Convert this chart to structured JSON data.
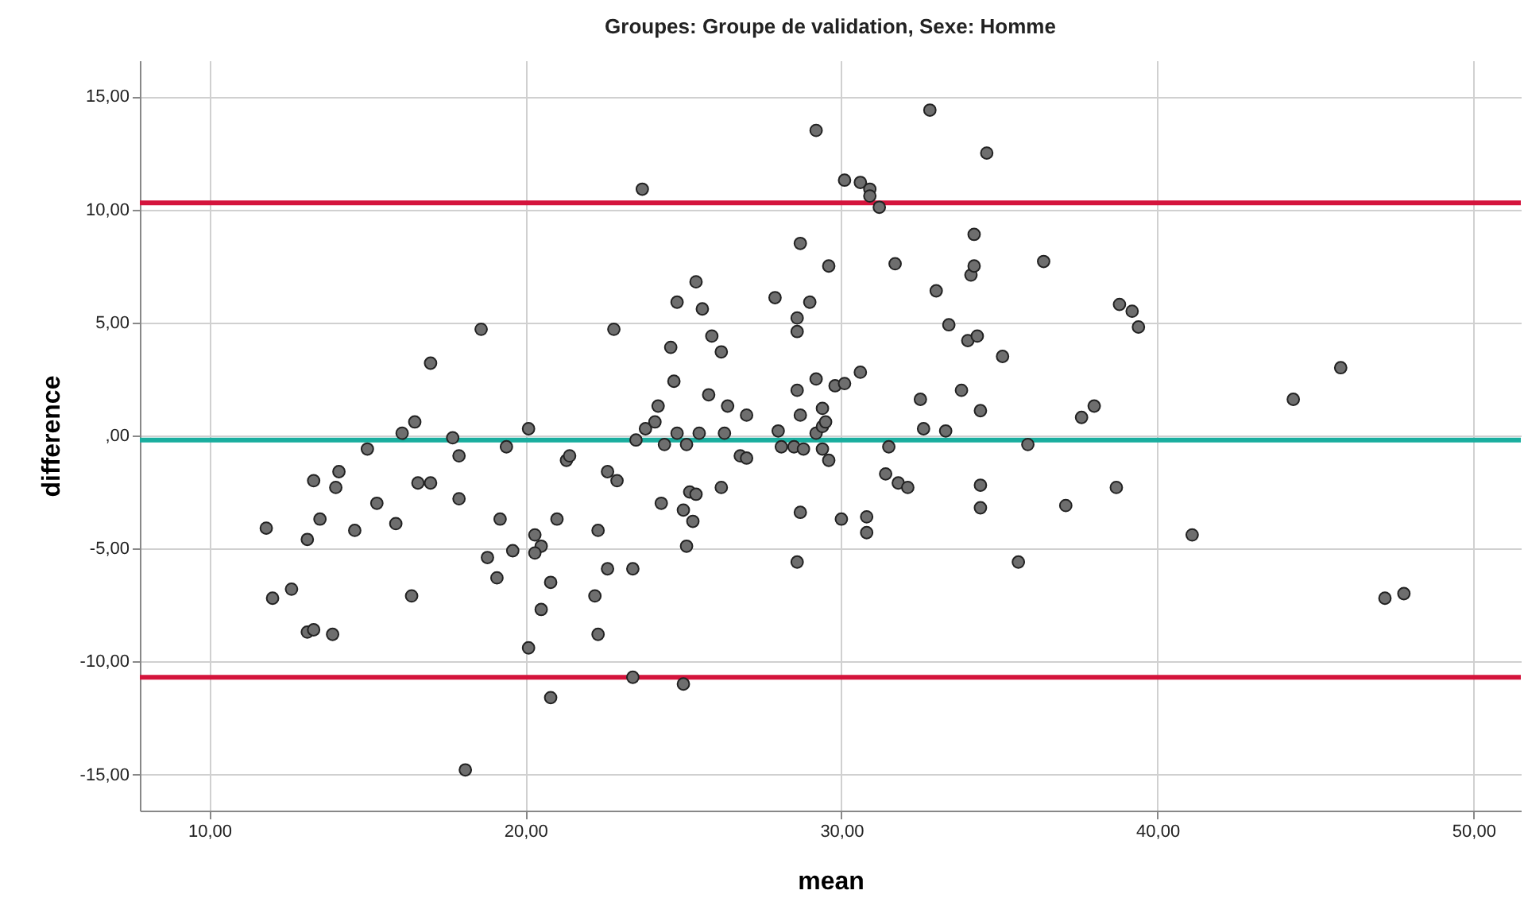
{
  "chart_data": {
    "type": "scatter",
    "title": "Groupes: Groupe de validation, Sexe: Homme",
    "xlabel": "mean",
    "ylabel": "difference",
    "color": "#6e6e6e",
    "marker": "circle",
    "grid": true,
    "xlim": [
      7.8,
      51.5
    ],
    "ylim": [
      -16.6,
      16.6
    ],
    "xticks": [
      {
        "value": 10,
        "label": "10,00"
      },
      {
        "value": 20,
        "label": "20,00"
      },
      {
        "value": 30,
        "label": "30,00"
      },
      {
        "value": 40,
        "label": "40,00"
      },
      {
        "value": 50,
        "label": "50,00"
      }
    ],
    "yticks": [
      {
        "value": -15,
        "label": "-15,00"
      },
      {
        "value": -10,
        "label": "-10,00"
      },
      {
        "value": -5,
        "label": "-5,00"
      },
      {
        "value": 0,
        "label": ",00"
      },
      {
        "value": 5,
        "label": "5,00"
      },
      {
        "value": 10,
        "label": "10,00"
      },
      {
        "value": 15,
        "label": "15,00"
      }
    ],
    "ref_lines": [
      {
        "axis": "y",
        "value": 10.3,
        "color": "#d4143c"
      },
      {
        "axis": "y",
        "value": -0.2,
        "color": "#1aae9f"
      },
      {
        "axis": "y",
        "value": -10.7,
        "color": "#d4143c"
      }
    ],
    "x": [
      11.8,
      12.0,
      12.6,
      13.1,
      13.3,
      13.1,
      13.3,
      13.5,
      13.9,
      14.0,
      14.1,
      14.6,
      15.0,
      15.3,
      15.9,
      16.1,
      16.4,
      16.5,
      16.6,
      17.0,
      17.0,
      17.7,
      17.9,
      17.9,
      18.1,
      18.6,
      18.8,
      19.1,
      19.2,
      19.4,
      19.6,
      20.1,
      20.1,
      20.3,
      20.5,
      20.3,
      20.8,
      20.5,
      20.8,
      21.0,
      21.3,
      21.4,
      22.2,
      22.3,
      22.3,
      22.6,
      22.9,
      22.6,
      22.8,
      23.4,
      23.4,
      23.5,
      23.8,
      23.7,
      24.1,
      24.2,
      24.4,
      24.3,
      24.6,
      24.7,
      24.8,
      24.8,
      25.0,
      25.0,
      25.1,
      25.1,
      25.2,
      25.3,
      25.4,
      25.4,
      25.5,
      25.6,
      25.8,
      25.9,
      26.2,
      26.2,
      26.3,
      26.4,
      26.8,
      27.0,
      27.0,
      27.9,
      28.0,
      28.1,
      28.5,
      28.6,
      28.6,
      28.6,
      28.6,
      28.7,
      28.7,
      28.8,
      28.7,
      29.0,
      29.2,
      29.2,
      29.2,
      29.4,
      29.4,
      29.4,
      29.5,
      29.6,
      29.6,
      29.8,
      30.0,
      30.1,
      30.1,
      30.6,
      30.6,
      30.8,
      30.8,
      30.9,
      30.9,
      31.2,
      31.4,
      31.5,
      31.7,
      31.8,
      32.1,
      32.5,
      32.6,
      32.8,
      33.0,
      33.3,
      33.4,
      33.8,
      34.0,
      34.1,
      34.2,
      34.2,
      34.3,
      34.4,
      34.4,
      34.4,
      34.6,
      35.1,
      35.6,
      35.9,
      36.4,
      37.1,
      37.6,
      38.0,
      38.7,
      38.8,
      39.2,
      39.4,
      41.1,
      44.3,
      45.8,
      47.2,
      47.8
    ],
    "values": [
      -4.1,
      -7.2,
      -6.8,
      -8.7,
      -8.6,
      -4.6,
      -2.0,
      -3.7,
      -8.8,
      -2.3,
      -1.6,
      -4.2,
      -0.6,
      -3.0,
      -3.9,
      0.1,
      -7.1,
      0.6,
      -2.1,
      -2.1,
      3.2,
      -0.1,
      -0.9,
      -2.8,
      -14.8,
      4.7,
      -5.4,
      -6.3,
      -3.7,
      -0.5,
      -5.1,
      0.3,
      -9.4,
      -4.4,
      -4.9,
      -5.2,
      -6.5,
      -7.7,
      -11.6,
      -3.7,
      -1.1,
      -0.9,
      -7.1,
      -4.2,
      -8.8,
      -1.6,
      -2.0,
      -5.9,
      4.7,
      -5.9,
      -10.7,
      -0.2,
      0.3,
      10.9,
      0.6,
      1.3,
      -0.4,
      -3.0,
      3.9,
      2.4,
      0.1,
      5.9,
      -11.0,
      -3.3,
      -0.4,
      -4.9,
      -2.5,
      -3.8,
      -2.6,
      6.8,
      0.1,
      5.6,
      1.8,
      4.4,
      3.7,
      -2.3,
      0.1,
      1.3,
      -0.9,
      0.9,
      -1.0,
      6.1,
      0.2,
      -0.5,
      -0.5,
      -5.6,
      5.2,
      4.6,
      2.0,
      0.9,
      -3.4,
      -0.6,
      8.5,
      5.9,
      2.5,
      13.5,
      0.1,
      1.2,
      -0.6,
      0.4,
      0.6,
      7.5,
      -1.1,
      2.2,
      -3.7,
      2.3,
      11.3,
      11.2,
      2.8,
      -3.6,
      -4.3,
      10.9,
      10.6,
      10.1,
      -1.7,
      -0.5,
      7.6,
      -2.1,
      -2.3,
      1.6,
      0.3,
      14.4,
      6.4,
      0.2,
      4.9,
      2.0,
      4.2,
      7.1,
      8.9,
      7.5,
      4.4,
      -2.2,
      -3.2,
      1.1,
      12.5,
      3.5,
      -5.6,
      -0.4,
      7.7,
      -3.1,
      0.8,
      1.3,
      -2.3,
      5.8,
      5.5,
      4.8,
      -4.4,
      1.6,
      3.0,
      -7.2,
      -7.0
    ]
  }
}
